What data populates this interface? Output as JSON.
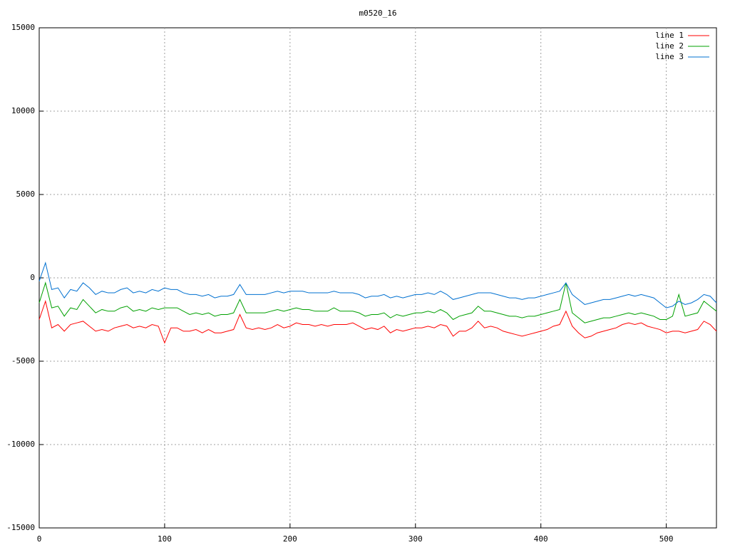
{
  "chart_data": {
    "type": "line",
    "title": "m0520_16",
    "x": [
      0,
      5,
      10,
      15,
      20,
      25,
      30,
      35,
      40,
      45,
      50,
      55,
      60,
      65,
      70,
      75,
      80,
      85,
      90,
      95,
      100,
      105,
      110,
      115,
      120,
      125,
      130,
      135,
      140,
      145,
      150,
      155,
      160,
      165,
      170,
      175,
      180,
      185,
      190,
      195,
      200,
      205,
      210,
      215,
      220,
      225,
      230,
      235,
      240,
      245,
      250,
      255,
      260,
      265,
      270,
      275,
      280,
      285,
      290,
      295,
      300,
      305,
      310,
      315,
      320,
      325,
      330,
      335,
      340,
      345,
      350,
      355,
      360,
      365,
      370,
      375,
      380,
      385,
      390,
      395,
      400,
      405,
      410,
      415,
      420,
      425,
      430,
      435,
      440,
      445,
      450,
      455,
      460,
      465,
      470,
      475,
      480,
      485,
      490,
      495,
      500,
      505,
      510,
      515,
      520,
      525,
      530,
      535,
      540
    ],
    "series": [
      {
        "name": "line 1",
        "color": "#ff0000",
        "values": [
          -2500,
          -1400,
          -3000,
          -2800,
          -3200,
          -2800,
          -2700,
          -2600,
          -2900,
          -3200,
          -3100,
          -3200,
          -3000,
          -2900,
          -2800,
          -3000,
          -2900,
          -3000,
          -2800,
          -2900,
          -3900,
          -3000,
          -3000,
          -3200,
          -3200,
          -3100,
          -3300,
          -3100,
          -3300,
          -3300,
          -3200,
          -3100,
          -2200,
          -3000,
          -3100,
          -3000,
          -3100,
          -3000,
          -2800,
          -3000,
          -2900,
          -2700,
          -2800,
          -2800,
          -2900,
          -2800,
          -2900,
          -2800,
          -2800,
          -2800,
          -2700,
          -2900,
          -3100,
          -3000,
          -3100,
          -2900,
          -3300,
          -3100,
          -3200,
          -3100,
          -3000,
          -3000,
          -2900,
          -3000,
          -2800,
          -2900,
          -3500,
          -3200,
          -3200,
          -3000,
          -2600,
          -3000,
          -2900,
          -3000,
          -3200,
          -3300,
          -3400,
          -3500,
          -3400,
          -3300,
          -3200,
          -3100,
          -2900,
          -2800,
          -2000,
          -2900,
          -3300,
          -3600,
          -3500,
          -3300,
          -3200,
          -3100,
          -3000,
          -2800,
          -2700,
          -2800,
          -2700,
          -2900,
          -3000,
          -3100,
          -3300,
          -3200,
          -3200,
          -3300,
          -3200,
          -3100,
          -2600,
          -2800,
          -3200
        ]
      },
      {
        "name": "line 2",
        "color": "#00a000",
        "values": [
          -1500,
          -300,
          -1800,
          -1700,
          -2300,
          -1800,
          -1900,
          -1300,
          -1700,
          -2100,
          -1900,
          -2000,
          -2000,
          -1800,
          -1700,
          -2000,
          -1900,
          -2000,
          -1800,
          -1900,
          -1800,
          -1800,
          -1800,
          -2000,
          -2200,
          -2100,
          -2200,
          -2100,
          -2300,
          -2200,
          -2200,
          -2100,
          -1300,
          -2100,
          -2100,
          -2100,
          -2100,
          -2000,
          -1900,
          -2000,
          -1900,
          -1800,
          -1900,
          -1900,
          -2000,
          -2000,
          -2000,
          -1800,
          -2000,
          -2000,
          -2000,
          -2100,
          -2300,
          -2200,
          -2200,
          -2100,
          -2400,
          -2200,
          -2300,
          -2200,
          -2100,
          -2100,
          -2000,
          -2100,
          -1900,
          -2100,
          -2500,
          -2300,
          -2200,
          -2100,
          -1700,
          -2000,
          -2000,
          -2100,
          -2200,
          -2300,
          -2300,
          -2400,
          -2300,
          -2300,
          -2200,
          -2100,
          -2000,
          -1900,
          -300,
          -2100,
          -2400,
          -2700,
          -2600,
          -2500,
          -2400,
          -2400,
          -2300,
          -2200,
          -2100,
          -2200,
          -2100,
          -2200,
          -2300,
          -2500,
          -2500,
          -2300,
          -1000,
          -2300,
          -2200,
          -2100,
          -1400,
          -1700,
          -2000
        ]
      },
      {
        "name": "line 3",
        "color": "#0070d0",
        "values": [
          -200,
          900,
          -700,
          -600,
          -1200,
          -700,
          -800,
          -300,
          -600,
          -1000,
          -800,
          -900,
          -900,
          -700,
          -600,
          -900,
          -800,
          -900,
          -700,
          -800,
          -600,
          -700,
          -700,
          -900,
          -1000,
          -1000,
          -1100,
          -1000,
          -1200,
          -1100,
          -1100,
          -1000,
          -400,
          -1000,
          -1000,
          -1000,
          -1000,
          -900,
          -800,
          -900,
          -800,
          -800,
          -800,
          -900,
          -900,
          -900,
          -900,
          -800,
          -900,
          -900,
          -900,
          -1000,
          -1200,
          -1100,
          -1100,
          -1000,
          -1200,
          -1100,
          -1200,
          -1100,
          -1000,
          -1000,
          -900,
          -1000,
          -800,
          -1000,
          -1300,
          -1200,
          -1100,
          -1000,
          -900,
          -900,
          -900,
          -1000,
          -1100,
          -1200,
          -1200,
          -1300,
          -1200,
          -1200,
          -1100,
          -1000,
          -900,
          -800,
          -300,
          -1000,
          -1300,
          -1600,
          -1500,
          -1400,
          -1300,
          -1300,
          -1200,
          -1100,
          -1000,
          -1100,
          -1000,
          -1100,
          -1200,
          -1500,
          -1800,
          -1700,
          -1400,
          -1600,
          -1500,
          -1300,
          -1000,
          -1100,
          -1500
        ]
      }
    ],
    "xlim": [
      0,
      540
    ],
    "xticks": [
      0,
      100,
      200,
      300,
      400,
      500
    ],
    "ylim": [
      -15000,
      15000
    ],
    "yticks": [
      -15000,
      -10000,
      -5000,
      0,
      5000,
      10000,
      15000
    ],
    "grid": true,
    "legend": "top-right"
  }
}
